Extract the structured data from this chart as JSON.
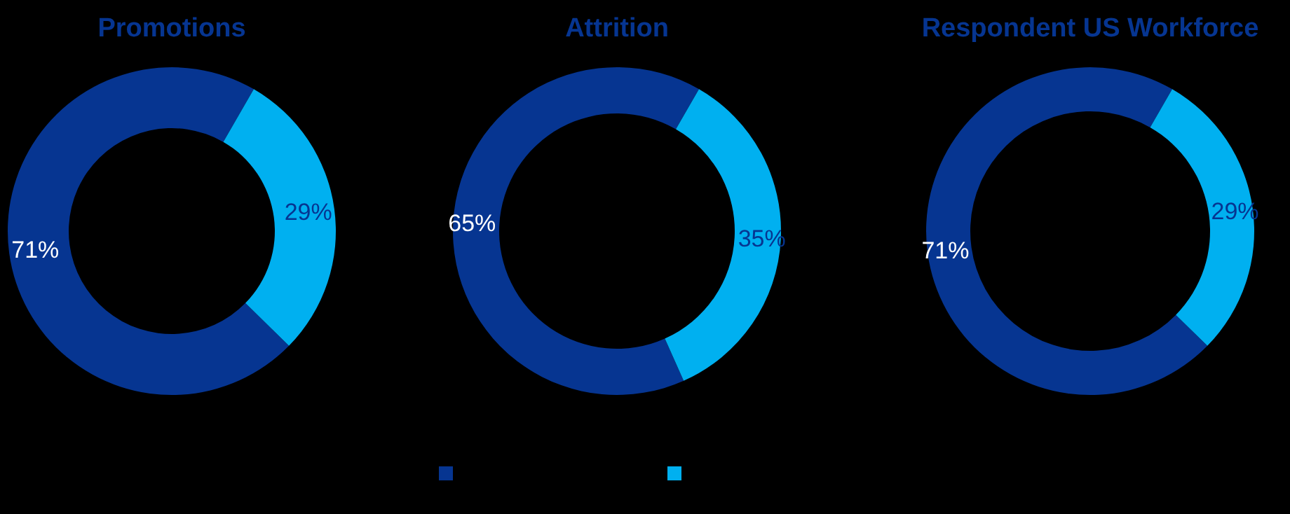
{
  "chart_data": [
    {
      "type": "donut",
      "title": "Promotions",
      "categories": [
        null,
        null
      ],
      "values": [
        71,
        29
      ],
      "colors": [
        "#063591",
        "#00b0f0"
      ],
      "value_labels": [
        "71%",
        "29%"
      ],
      "legend": false
    },
    {
      "type": "donut",
      "title": "Attrition",
      "categories": [
        null,
        null
      ],
      "values": [
        65,
        35
      ],
      "colors": [
        "#063591",
        "#00b0f0"
      ],
      "value_labels": [
        "65%",
        "35%"
      ],
      "legend": false
    },
    {
      "type": "donut",
      "title": "Respondent US Workforce",
      "categories": [
        null,
        null
      ],
      "values": [
        71,
        29
      ],
      "colors": [
        "#063591",
        "#00b0f0"
      ],
      "value_labels": [
        "71%",
        "29%"
      ],
      "legend": false
    }
  ]
}
